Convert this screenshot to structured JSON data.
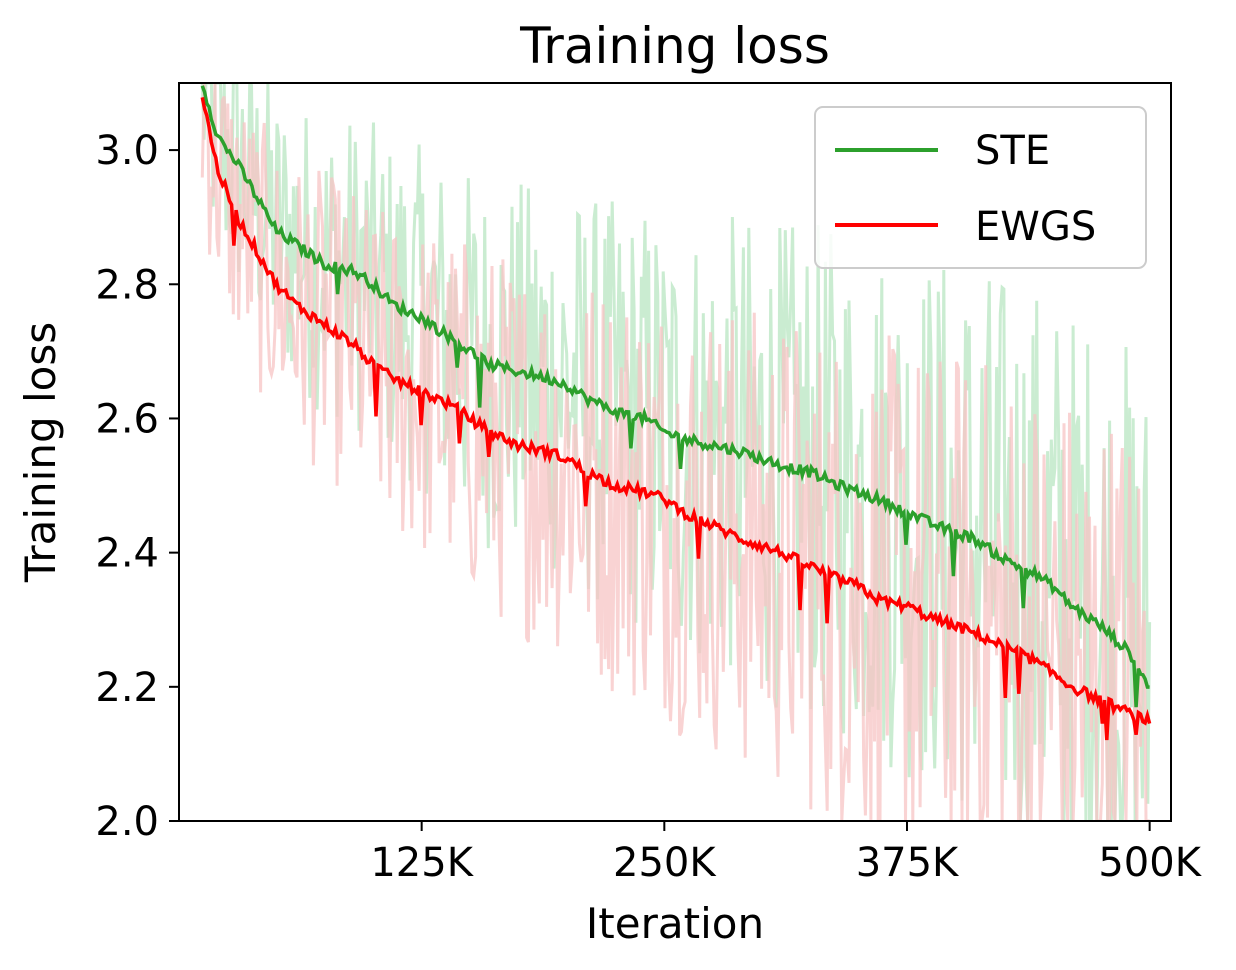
{
  "chart_data": {
    "type": "line",
    "title": "Training loss",
    "xlabel": "Iteration",
    "ylabel": "Training loss",
    "xlim": [
      0,
      511000
    ],
    "ylim": [
      2.0,
      3.1
    ],
    "xticks": [
      125000,
      250000,
      375000,
      500000
    ],
    "xtick_labels": [
      "125K",
      "250K",
      "375K",
      "500K"
    ],
    "yticks": [
      2.0,
      2.2,
      2.4,
      2.6,
      2.8,
      3.0
    ],
    "ytick_labels": [
      "2.0",
      "2.2",
      "2.4",
      "2.6",
      "2.8",
      "3.0"
    ],
    "grid": false,
    "legend": "top-right",
    "series": [
      {
        "name": "STE",
        "color": "#2ca02c",
        "raw_color": "#b8e6c2",
        "x": [
          12000,
          20000,
          30000,
          40000,
          50000,
          60000,
          75000,
          90000,
          100000,
          110000,
          125000,
          140000,
          150000,
          160000,
          175000,
          190000,
          200000,
          210000,
          225000,
          240000,
          250000,
          260000,
          275000,
          290000,
          300000,
          310000,
          325000,
          340000,
          350000,
          360000,
          375000,
          390000,
          400000,
          410000,
          425000,
          440000,
          450000,
          460000,
          475000,
          490000,
          500000
        ],
        "values": [
          3.1,
          3.02,
          2.98,
          2.93,
          2.88,
          2.86,
          2.83,
          2.82,
          2.8,
          2.77,
          2.75,
          2.72,
          2.7,
          2.68,
          2.67,
          2.66,
          2.65,
          2.63,
          2.61,
          2.6,
          2.58,
          2.57,
          2.56,
          2.55,
          2.54,
          2.53,
          2.52,
          2.5,
          2.49,
          2.48,
          2.46,
          2.44,
          2.43,
          2.42,
          2.39,
          2.37,
          2.35,
          2.32,
          2.29,
          2.25,
          2.2
        ]
      },
      {
        "name": "EWGS",
        "color": "#ff0000",
        "raw_color": "#f7c4c4",
        "x": [
          12000,
          20000,
          30000,
          40000,
          50000,
          60000,
          75000,
          90000,
          100000,
          110000,
          125000,
          140000,
          150000,
          160000,
          175000,
          190000,
          200000,
          210000,
          225000,
          240000,
          250000,
          260000,
          275000,
          290000,
          300000,
          310000,
          325000,
          340000,
          350000,
          360000,
          375000,
          390000,
          400000,
          410000,
          425000,
          440000,
          450000,
          460000,
          475000,
          490000,
          500000
        ],
        "values": [
          3.08,
          2.97,
          2.9,
          2.85,
          2.8,
          2.77,
          2.74,
          2.71,
          2.68,
          2.66,
          2.64,
          2.62,
          2.6,
          2.58,
          2.56,
          2.55,
          2.54,
          2.52,
          2.5,
          2.49,
          2.48,
          2.46,
          2.44,
          2.42,
          2.41,
          2.4,
          2.38,
          2.36,
          2.35,
          2.33,
          2.32,
          2.3,
          2.29,
          2.28,
          2.26,
          2.24,
          2.22,
          2.2,
          2.18,
          2.16,
          2.15
        ]
      }
    ]
  }
}
